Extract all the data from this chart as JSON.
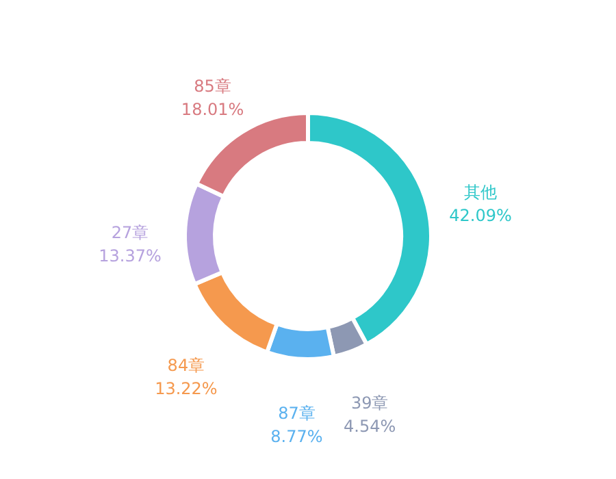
{
  "chart_data": {
    "type": "donut",
    "categories": [
      "其他",
      "39章",
      "87章",
      "84章",
      "27章",
      "85章"
    ],
    "values": [
      42.09,
      4.54,
      8.77,
      13.22,
      13.37,
      18.01
    ],
    "value_labels": [
      "42.09%",
      "4.54%",
      "8.77%",
      "13.22%",
      "13.37%",
      "18.01%"
    ],
    "colors": [
      "#2ec7c9",
      "#8d98b3",
      "#5ab1ef",
      "#f5994e",
      "#b6a2de",
      "#d87a80"
    ]
  }
}
